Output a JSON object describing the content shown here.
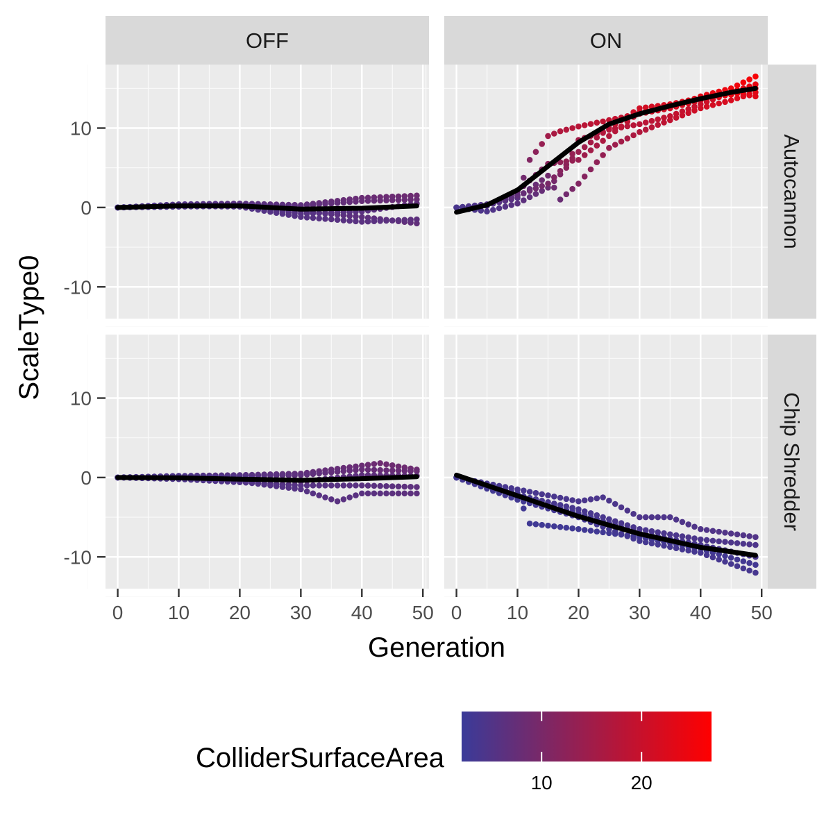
{
  "chart_data": {
    "type": "scatter",
    "xlabel": "Generation",
    "ylabel": "ScaleType0",
    "column_facets": [
      "OFF",
      "ON"
    ],
    "row_facets": [
      "Autocannon",
      "Chip Shredder"
    ],
    "xlim": [
      -2,
      51
    ],
    "ylim": [
      -14,
      18
    ],
    "x_ticks": [
      0,
      10,
      20,
      30,
      40,
      50
    ],
    "y_ticks": [
      -10,
      0,
      10
    ],
    "grid": true,
    "legend": {
      "title": "ColliderSurfaceArea",
      "position": "bottom",
      "range": [
        2,
        27
      ],
      "ticks": [
        10,
        20
      ],
      "low_color": "#3a3b99",
      "high_color": "#ff0000"
    },
    "colors": {
      "panel_bg": "#ebebeb",
      "strip_bg": "#d9d9d9",
      "smooth": "#000000"
    },
    "panels": [
      {
        "col": "OFF",
        "row": "Autocannon",
        "smooth": {
          "x": [
            0,
            10,
            20,
            30,
            40,
            49
          ],
          "y": [
            0,
            0.2,
            0.2,
            -0.2,
            -0.1,
            0.2
          ]
        },
        "runs": [
          {
            "x": [
              0,
              10,
              20,
              30,
              40,
              49
            ],
            "y": [
              0,
              0.3,
              0.3,
              -0.5,
              -1.2,
              -2.0
            ],
            "c": [
              4,
              4.5,
              5,
              6,
              6.5,
              7
            ]
          },
          {
            "x": [
              0,
              10,
              20,
              30,
              40,
              49
            ],
            "y": [
              0,
              0.4,
              0.5,
              0.3,
              1.2,
              1.5
            ],
            "c": [
              4,
              5,
              6,
              7,
              8,
              8.5
            ]
          },
          {
            "x": [
              0,
              10,
              20,
              30,
              40,
              49
            ],
            "y": [
              0,
              0.2,
              0.1,
              -1.2,
              -1.8,
              -1.5
            ],
            "c": [
              4,
              4.5,
              5,
              5.5,
              6,
              6.5
            ]
          },
          {
            "x": [
              0,
              10,
              20,
              30,
              40,
              49
            ],
            "y": [
              0,
              0.2,
              0.3,
              0.2,
              0.8,
              1.0
            ],
            "c": [
              4,
              5,
              5.5,
              6.5,
              7.5,
              8
            ]
          },
          {
            "x": [
              0,
              10,
              20,
              30,
              40,
              49
            ],
            "y": [
              0,
              0.1,
              0.2,
              -0.8,
              -0.5,
              0.5
            ],
            "c": [
              4,
              4.5,
              5,
              5.5,
              6,
              7
            ]
          }
        ]
      },
      {
        "col": "ON",
        "row": "Autocannon",
        "smooth": {
          "x": [
            0,
            5,
            10,
            15,
            20,
            25,
            30,
            35,
            40,
            45,
            49
          ],
          "y": [
            -0.6,
            0.3,
            2.2,
            5.2,
            8.2,
            10.5,
            11.8,
            12.8,
            13.7,
            14.5,
            15.0
          ]
        },
        "runs": [
          {
            "x": [
              0,
              5,
              10,
              12,
              15,
              17,
              20,
              25,
              30,
              35,
              40,
              45,
              49
            ],
            "y": [
              0,
              0.3,
              1.5,
              6.0,
              9.0,
              9.6,
              10.2,
              11.0,
              11.8,
              12.5,
              13.5,
              14.5,
              15.5
            ],
            "c": [
              4,
              5,
              7,
              11,
              15,
              17,
              18,
              19,
              20,
              21,
              22,
              23,
              24
            ]
          },
          {
            "x": [
              0,
              5,
              10,
              15,
              18,
              20,
              25,
              30,
              35,
              40,
              45,
              49
            ],
            "y": [
              0,
              -0.5,
              0.5,
              2.5,
              5.0,
              8.5,
              9.8,
              10.5,
              11.5,
              13.0,
              14.5,
              14.0
            ],
            "c": [
              4,
              4.5,
              6,
              8,
              12,
              15,
              17,
              18,
              19,
              20,
              22,
              23
            ]
          },
          {
            "x": [
              0,
              5,
              10,
              15,
              20,
              25,
              30,
              35,
              40,
              45,
              49
            ],
            "y": [
              0,
              0.2,
              2.0,
              5.5,
              6.0,
              9.0,
              12.0,
              12.5,
              14.0,
              15.0,
              16.5
            ],
            "c": [
              4,
              5,
              8,
              12,
              14,
              17,
              20,
              21,
              23,
              25,
              26
            ]
          },
          {
            "x": [
              0,
              5,
              10,
              15,
              17,
              20,
              25,
              30,
              35,
              40,
              45,
              49
            ],
            "y": [
              0,
              0.3,
              1.2,
              4.0,
              1.0,
              3.0,
              7.5,
              9.5,
              11.0,
              12.5,
              13.5,
              14.5
            ],
            "c": [
              4,
              5,
              6,
              9,
              8,
              11,
              14,
              17,
              19,
              21,
              22,
              23
            ]
          },
          {
            "x": [
              0,
              5,
              10,
              15,
              20,
              25,
              30,
              35,
              40,
              45,
              49
            ],
            "y": [
              0,
              0.4,
              1.5,
              3.0,
              7.0,
              10.0,
              12.5,
              13.0,
              13.8,
              14.2,
              15.0
            ],
            "c": [
              4,
              5,
              7,
              10,
              14,
              18,
              21,
              22,
              23,
              24,
              25
            ]
          }
        ]
      },
      {
        "col": "OFF",
        "row": "Chip Shredder",
        "smooth": {
          "x": [
            0,
            10,
            20,
            30,
            40,
            49
          ],
          "y": [
            0,
            -0.05,
            -0.2,
            -0.35,
            -0.15,
            0.1
          ]
        },
        "runs": [
          {
            "x": [
              0,
              10,
              20,
              30,
              36,
              40,
              49
            ],
            "y": [
              0,
              -0.1,
              -0.5,
              -1.5,
              -3.0,
              -2.0,
              -2.0
            ],
            "c": [
              4,
              4.5,
              5,
              5.5,
              6,
              6,
              6.5
            ]
          },
          {
            "x": [
              0,
              10,
              20,
              30,
              40,
              43,
              49
            ],
            "y": [
              0,
              0.2,
              0.3,
              0.5,
              1.5,
              1.8,
              1.0
            ],
            "c": [
              4,
              5,
              6,
              7,
              8,
              8.5,
              8.5
            ]
          },
          {
            "x": [
              0,
              10,
              20,
              30,
              40,
              49
            ],
            "y": [
              0,
              -0.2,
              -0.6,
              -1.0,
              -1.0,
              -1.2
            ],
            "c": [
              4,
              4.5,
              5,
              5.5,
              6,
              6.5
            ]
          },
          {
            "x": [
              0,
              10,
              20,
              30,
              40,
              49
            ],
            "y": [
              0,
              0.1,
              0.2,
              0.3,
              1.0,
              0.8
            ],
            "c": [
              4,
              5,
              5.5,
              6.5,
              7.5,
              8
            ]
          },
          {
            "x": [
              0,
              10,
              20,
              30,
              40,
              49
            ],
            "y": [
              0,
              0.2,
              0.0,
              -0.5,
              0.3,
              0.2
            ],
            "c": [
              4,
              4.5,
              5,
              6,
              6.5,
              7
            ]
          }
        ]
      },
      {
        "col": "ON",
        "row": "Chip Shredder",
        "smooth": {
          "x": [
            0,
            10,
            20,
            30,
            40,
            49
          ],
          "y": [
            0.3,
            -2.3,
            -4.9,
            -7.1,
            -8.8,
            -9.8
          ]
        },
        "runs": [
          {
            "x": [
              0,
              10,
              12,
              20,
              30,
              40,
              49
            ],
            "y": [
              0,
              -2.0,
              -5.8,
              -6.5,
              -7.5,
              -9.0,
              -11.0
            ],
            "c": [
              3,
              3,
              2.8,
              2.8,
              3,
              3,
              3.2
            ]
          },
          {
            "x": [
              0,
              10,
              20,
              24,
              30,
              35,
              40,
              49
            ],
            "y": [
              0,
              -1.5,
              -3.0,
              -2.5,
              -5.0,
              -5.0,
              -6.5,
              -7.5
            ],
            "c": [
              3.5,
              3.8,
              4,
              4.2,
              4.5,
              4.5,
              4.8,
              5
            ]
          },
          {
            "x": [
              0,
              10,
              20,
              30,
              40,
              49
            ],
            "y": [
              0,
              -2.5,
              -4.5,
              -7.0,
              -8.5,
              -10.0
            ],
            "c": [
              3,
              3.2,
              3.4,
              3.6,
              3.8,
              4
            ]
          },
          {
            "x": [
              0,
              10,
              20,
              30,
              40,
              49
            ],
            "y": [
              0,
              -2.8,
              -5.0,
              -8.0,
              -9.5,
              -12.0
            ],
            "c": [
              3,
              3,
              3.2,
              3.3,
              3.5,
              3.6
            ]
          },
          {
            "x": [
              0,
              10,
              20,
              30,
              40,
              49
            ],
            "y": [
              0,
              -2.2,
              -4.0,
              -6.5,
              -7.8,
              -8.5
            ],
            "c": [
              3.2,
              3.5,
              3.8,
              4,
              4.3,
              4.5
            ]
          }
        ]
      }
    ]
  }
}
